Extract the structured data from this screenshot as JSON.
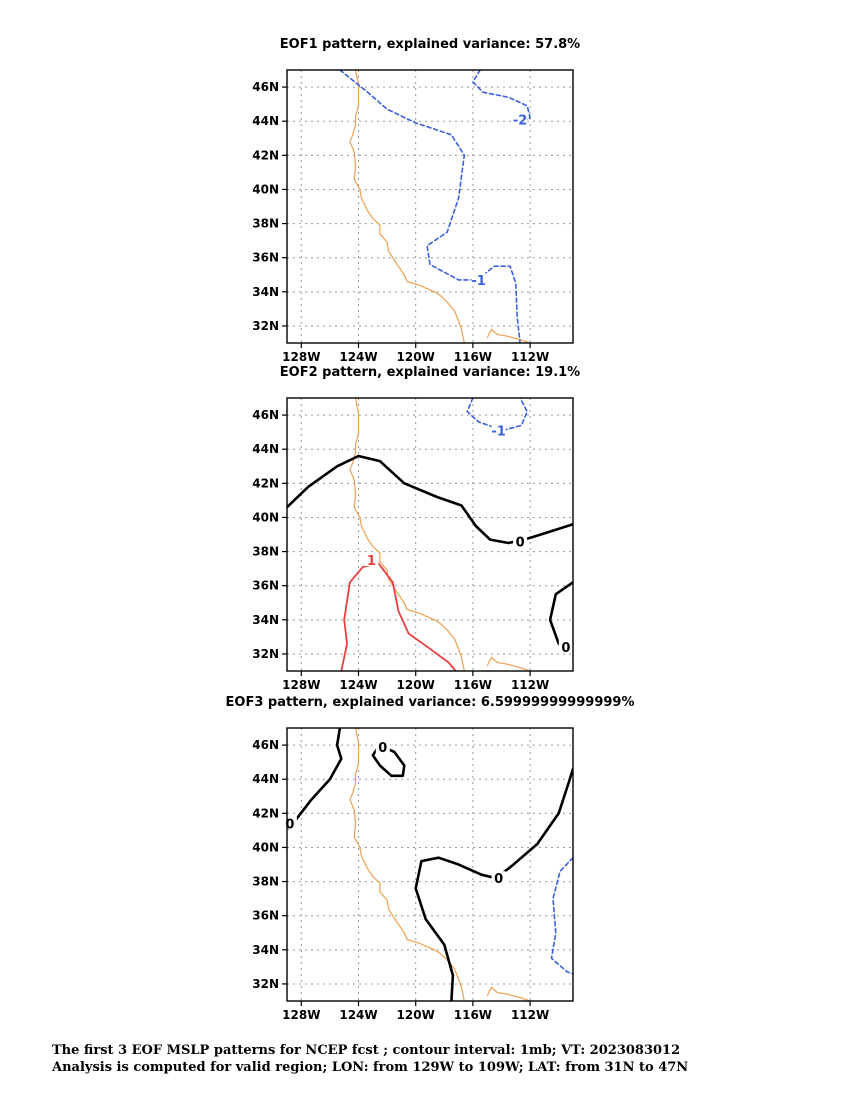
{
  "map_data": {
    "panels": [
      {
        "title": "EOF1 pattern, explained variance: 57.8%",
        "contours": [
          {
            "value": -2,
            "label": "-2",
            "style": "dashed",
            "color": "#3a5fe0",
            "points": [
              [
                -115.5,
                47
              ],
              [
                -116,
                46.3
              ],
              [
                -115.3,
                45.7
              ],
              [
                -113.5,
                45.4
              ],
              [
                -112.2,
                44.9
              ],
              [
                -112,
                44.2
              ],
              [
                -112.5,
                44
              ]
            ],
            "label_at": [
              -112.7,
              44.1
            ]
          },
          {
            "value": -1,
            "label": "-1",
            "style": "dashed",
            "color": "#3a5fe0",
            "points": [
              [
                -125.3,
                47
              ],
              [
                -123.5,
                45.8
              ],
              [
                -122,
                44.7
              ],
              [
                -120,
                43.9
              ],
              [
                -117.5,
                43.2
              ],
              [
                -116.6,
                42
              ],
              [
                -117,
                39.5
              ],
              [
                -117.8,
                37.5
              ],
              [
                -119.2,
                36.7
              ],
              [
                -119,
                35.6
              ],
              [
                -117,
                34.7
              ],
              [
                -115.7,
                34.7
              ],
              [
                -114.5,
                35.5
              ],
              [
                -113.4,
                35.5
              ],
              [
                -113,
                34.5
              ],
              [
                -112.9,
                32.5
              ],
              [
                -112.7,
                31
              ]
            ],
            "label_at": [
              -115.6,
              34.7
            ]
          }
        ]
      },
      {
        "title": "EOF2 pattern, explained variance: 19.1%",
        "contours": [
          {
            "value": -1,
            "label": "-1",
            "style": "dashed",
            "color": "#3a5fe0",
            "points": [
              [
                -116,
                47
              ],
              [
                -116.4,
                46.2
              ],
              [
                -115.6,
                45.6
              ],
              [
                -113.9,
                45.1
              ],
              [
                -112.6,
                45.4
              ],
              [
                -112.2,
                46.2
              ],
              [
                -112.7,
                47
              ]
            ],
            "label_at": [
              -114.2,
              45.1
            ]
          },
          {
            "value": 0,
            "label": "0",
            "style": "solid",
            "color": "#000000",
            "points": [
              [
                -129,
                40.6
              ],
              [
                -127.5,
                41.8
              ],
              [
                -125.5,
                43
              ],
              [
                -124,
                43.6
              ],
              [
                -122.5,
                43.3
              ],
              [
                -120.8,
                42
              ],
              [
                -118.5,
                41.2
              ],
              [
                -116.8,
                40.7
              ],
              [
                -115.8,
                39.5
              ],
              [
                -114.8,
                38.7
              ],
              [
                -113.5,
                38.5
              ],
              [
                -112,
                38.8
              ],
              [
                -110.5,
                39.2
              ],
              [
                -109,
                39.6
              ]
            ],
            "label_at": [
              -112.7,
              38.6
            ]
          },
          {
            "value": 0,
            "label": "0",
            "style": "solid",
            "color": "#000000",
            "points": [
              [
                -109,
                36.2
              ],
              [
                -110.2,
                35.5
              ],
              [
                -110.6,
                34
              ],
              [
                -110,
                32.6
              ],
              [
                -109.4,
                32.3
              ]
            ],
            "label_at": [
              -109.5,
              32.4
            ]
          },
          {
            "value": 1,
            "label": "1",
            "style": "solid",
            "color": "#e84040",
            "points": [
              [
                -125.2,
                31
              ],
              [
                -124.8,
                32.6
              ],
              [
                -125,
                34
              ],
              [
                -124.6,
                36.2
              ],
              [
                -123.7,
                37.1
              ],
              [
                -122.6,
                37.3
              ],
              [
                -121.6,
                36.2
              ],
              [
                -121.2,
                34.5
              ],
              [
                -120.5,
                33.2
              ],
              [
                -119,
                32.3
              ],
              [
                -117.7,
                31.5
              ],
              [
                -117.2,
                31
              ]
            ],
            "label_at": [
              -123.1,
              37.5
            ]
          }
        ]
      },
      {
        "title": "EOF3 pattern, explained variance: 6.59999999999999%",
        "contours": [
          {
            "value": 0,
            "label": "0",
            "style": "solid",
            "color": "#000000",
            "points": [
              [
                -125.3,
                47
              ],
              [
                -125.5,
                46
              ],
              [
                -125.2,
                45.2
              ],
              [
                -126,
                44
              ],
              [
                -127.3,
                42.8
              ],
              [
                -128.4,
                41.6
              ],
              [
                -128.9,
                41.1
              ]
            ],
            "label_at": [
              -128.8,
              41.4
            ]
          },
          {
            "value": 0,
            "label": "0",
            "style": "solid",
            "color": "#000000",
            "points": [
              [
                -122.6,
                45.9
              ],
              [
                -123,
                45.4
              ],
              [
                -122.5,
                44.8
              ],
              [
                -121.7,
                44.2
              ],
              [
                -120.9,
                44.2
              ],
              [
                -120.8,
                44.8
              ],
              [
                -121.5,
                45.6
              ],
              [
                -122.3,
                45.9
              ]
            ],
            "label_at": [
              -122.3,
              45.9
            ]
          },
          {
            "value": 0,
            "label": "0",
            "style": "solid",
            "color": "#000000",
            "points": [
              [
                -117.5,
                31
              ],
              [
                -117.4,
                32.5
              ],
              [
                -118,
                34.3
              ],
              [
                -119.3,
                35.8
              ],
              [
                -120,
                37.6
              ],
              [
                -119.6,
                39.2
              ],
              [
                -118.4,
                39.4
              ],
              [
                -117,
                39
              ],
              [
                -115.4,
                38.4
              ],
              [
                -114.4,
                38.2
              ],
              [
                -113.3,
                38.9
              ],
              [
                -111.5,
                40.2
              ],
              [
                -110,
                42
              ],
              [
                -109.3,
                43.8
              ],
              [
                -109,
                44.6
              ]
            ],
            "label_at": [
              -114.2,
              38.2
            ]
          },
          {
            "value": -1,
            "label": "",
            "style": "dashed",
            "color": "#3a5fe0",
            "points": [
              [
                -109,
                39.4
              ],
              [
                -109.9,
                38.6
              ],
              [
                -110.4,
                37
              ],
              [
                -110.2,
                35
              ],
              [
                -110.5,
                33.5
              ],
              [
                -109.4,
                32.7
              ],
              [
                -109,
                32.6
              ]
            ],
            "label_at": null
          }
        ]
      }
    ],
    "lon_range": [
      -129,
      -109
    ],
    "lat_range": [
      31,
      47
    ],
    "lon_ticks": [
      -128,
      -124,
      -120,
      -116,
      -112
    ],
    "lon_tick_labels": [
      "128W",
      "124W",
      "120W",
      "116W",
      "112W"
    ],
    "lat_ticks": [
      32,
      34,
      36,
      38,
      40,
      42,
      44,
      46
    ],
    "lat_tick_labels": [
      "32N",
      "34N",
      "36N",
      "38N",
      "40N",
      "42N",
      "44N",
      "46N"
    ],
    "grid": "dotted",
    "coastline_color": "#f0a050",
    "coastline": [
      [
        -124.2,
        47
      ],
      [
        -124.1,
        46.5
      ],
      [
        -124,
        46.2
      ],
      [
        -124,
        45.5
      ],
      [
        -124,
        44.9
      ],
      [
        -124.2,
        44.3
      ],
      [
        -124.2,
        43.8
      ],
      [
        -124.4,
        43.2
      ],
      [
        -124.6,
        42.8
      ],
      [
        -124.3,
        42.2
      ],
      [
        -124.2,
        41.4
      ],
      [
        -124.3,
        40.6
      ],
      [
        -123.9,
        40
      ],
      [
        -123.8,
        39.5
      ],
      [
        -123.4,
        38.8
      ],
      [
        -123,
        38.3
      ],
      [
        -122.5,
        37.9
      ],
      [
        -122.5,
        37.4
      ],
      [
        -122,
        36.9
      ],
      [
        -121.9,
        36.4
      ],
      [
        -121.3,
        35.6
      ],
      [
        -120.8,
        35
      ],
      [
        -120.6,
        34.6
      ],
      [
        -119.8,
        34.4
      ],
      [
        -118.7,
        34
      ],
      [
        -118.3,
        33.8
      ],
      [
        -117.8,
        33.4
      ],
      [
        -117.3,
        32.9
      ],
      [
        -117.1,
        32.5
      ],
      [
        -116.8,
        31.8
      ],
      [
        -116.6,
        31
      ]
    ],
    "border_color": "#f0a050",
    "border": [
      [
        -115,
        31.3
      ],
      [
        -114.7,
        31.8
      ],
      [
        -114.3,
        31.5
      ],
      [
        -113.6,
        31.4
      ],
      [
        -112.7,
        31.2
      ],
      [
        -112,
        31
      ]
    ]
  },
  "caption": {
    "line1": "The first 3 EOF MSLP patterns for NCEP fcst ; contour interval: 1mb; VT: 2023083012",
    "line2": "Analysis is computed for valid region; LON: from 129W to 109W; LAT: from 31N to 47N"
  }
}
